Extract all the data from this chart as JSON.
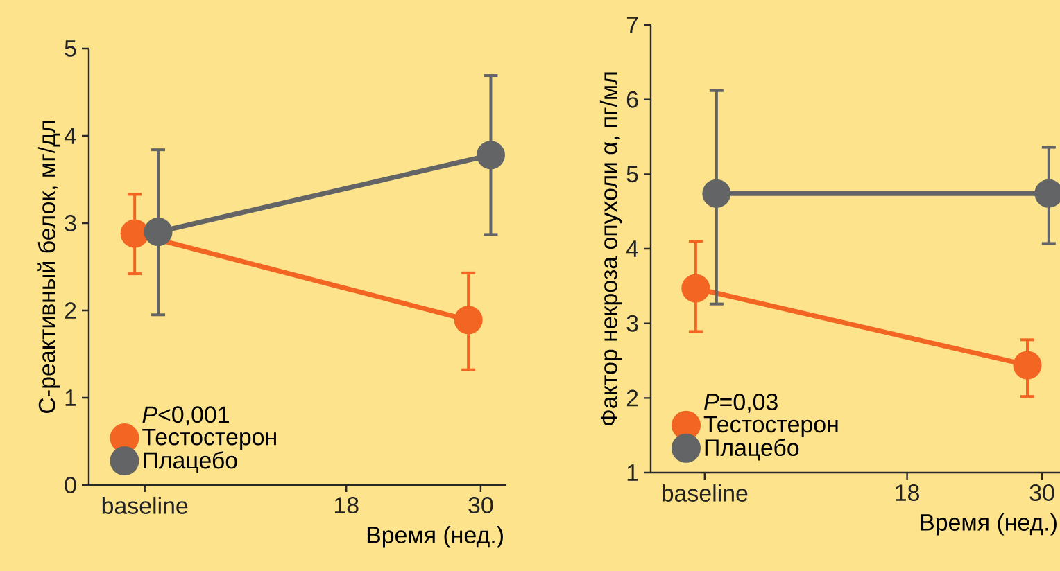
{
  "chart_data": [
    {
      "type": "line",
      "ylabel": "С-реактивный белок, мг/дл",
      "xlabel": "Время (нед.)",
      "legend_title": "*P*<0,001",
      "legend": "bottom left",
      "marker": "circle",
      "xlim": [
        -5,
        32.3
      ],
      "ylim": [
        0,
        5
      ],
      "xticks": [
        {
          "value": 0,
          "label": "baseline"
        },
        18,
        30
      ],
      "yticks": [
        0,
        1,
        2,
        3,
        4,
        5
      ],
      "series": [
        {
          "name": "Тестостерон",
          "color": "#f26522",
          "x": [
            -0.9,
            28.9
          ],
          "values": [
            2.88,
            1.89
          ],
          "errors": [
            [
              2.42,
              3.33
            ],
            [
              1.32,
              2.43
            ]
          ]
        },
        {
          "name": "Плацебо",
          "color": "#636466",
          "x": [
            1.2,
            30.9
          ],
          "values": [
            2.9,
            3.78
          ],
          "errors": [
            [
              1.95,
              3.84
            ],
            [
              2.87,
              4.69
            ]
          ]
        }
      ]
    },
    {
      "type": "line",
      "ylabel": "Фактор некроза опухоли α, пг/мл",
      "xlabel": "Время (нед.)",
      "legend_title": "*P*=0,03",
      "legend": "bottom left",
      "marker": "circle",
      "xlim": [
        -4.8,
        31.6
      ],
      "ylim": [
        1,
        7
      ],
      "xticks": [
        {
          "value": 0,
          "label": "baseline"
        },
        18,
        30
      ],
      "yticks": [
        1,
        2,
        3,
        4,
        5,
        6,
        7
      ],
      "series": [
        {
          "name": "Тестостерон",
          "color": "#f26522",
          "x": [
            -0.8,
            28.7
          ],
          "values": [
            3.47,
            2.44
          ],
          "errors": [
            [
              2.89,
              4.1
            ],
            [
              2.02,
              2.78
            ]
          ]
        },
        {
          "name": "Плацебо",
          "color": "#636466",
          "x": [
            1.05,
            30.6
          ],
          "values": [
            4.74,
            4.74
          ],
          "errors": [
            [
              3.26,
              6.12
            ],
            [
              4.07,
              5.36
            ]
          ]
        }
      ]
    }
  ]
}
